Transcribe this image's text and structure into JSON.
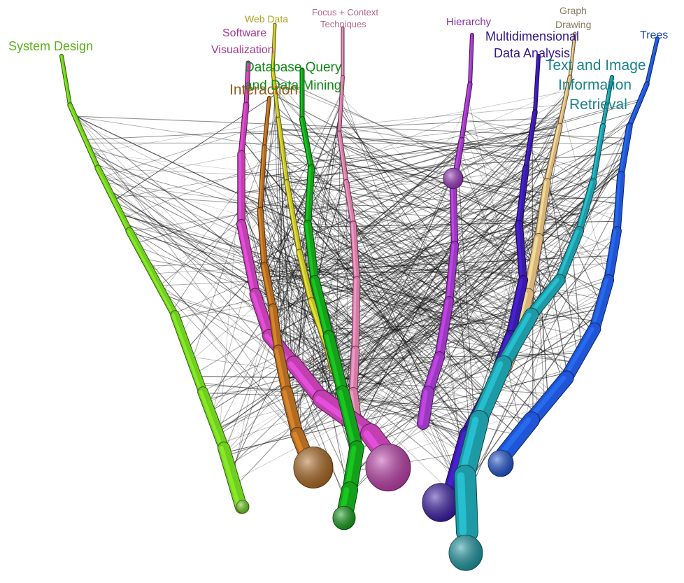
{
  "topics": [
    {
      "id": "system-design",
      "label": "System Design",
      "color": "#6fcf1f"
    },
    {
      "id": "software-visualization",
      "label": "Software Visualization",
      "line1": "Software",
      "line2": "Visualization",
      "color": "#c23fb0"
    },
    {
      "id": "web-data",
      "label": "Web Data",
      "color": "#c6c029"
    },
    {
      "id": "focus-context",
      "label": "Focus + Context Techniques",
      "line1": "Focus + Context",
      "line2": "Techniques",
      "color": "#d77aa2"
    },
    {
      "id": "database-query",
      "label": "Database Query and Data Mining",
      "line1": "Database Query",
      "line2": "and Data Mining",
      "color": "#14a01a"
    },
    {
      "id": "interaction",
      "label": "Interaction",
      "color": "#b06a22"
    },
    {
      "id": "hierarchy",
      "label": "Hierarchy",
      "color": "#9b38c2"
    },
    {
      "id": "multidimensional",
      "label": "Multidimensional Data Analysis",
      "line1": "Multidimensional",
      "line2": "Data Analysis",
      "color": "#3a1aa8"
    },
    {
      "id": "graph-drawing",
      "label": "Graph Drawing",
      "line1": "Graph",
      "line2": "Drawing",
      "color": "#d9b37a"
    },
    {
      "id": "text-image",
      "label": "Text and Image Information Retrieval",
      "line1": "Text and Image",
      "line2": "Information",
      "line3": "Retrieval",
      "color": "#1e9aa6"
    },
    {
      "id": "trees",
      "label": "Trees",
      "color": "#1f55d6"
    }
  ]
}
